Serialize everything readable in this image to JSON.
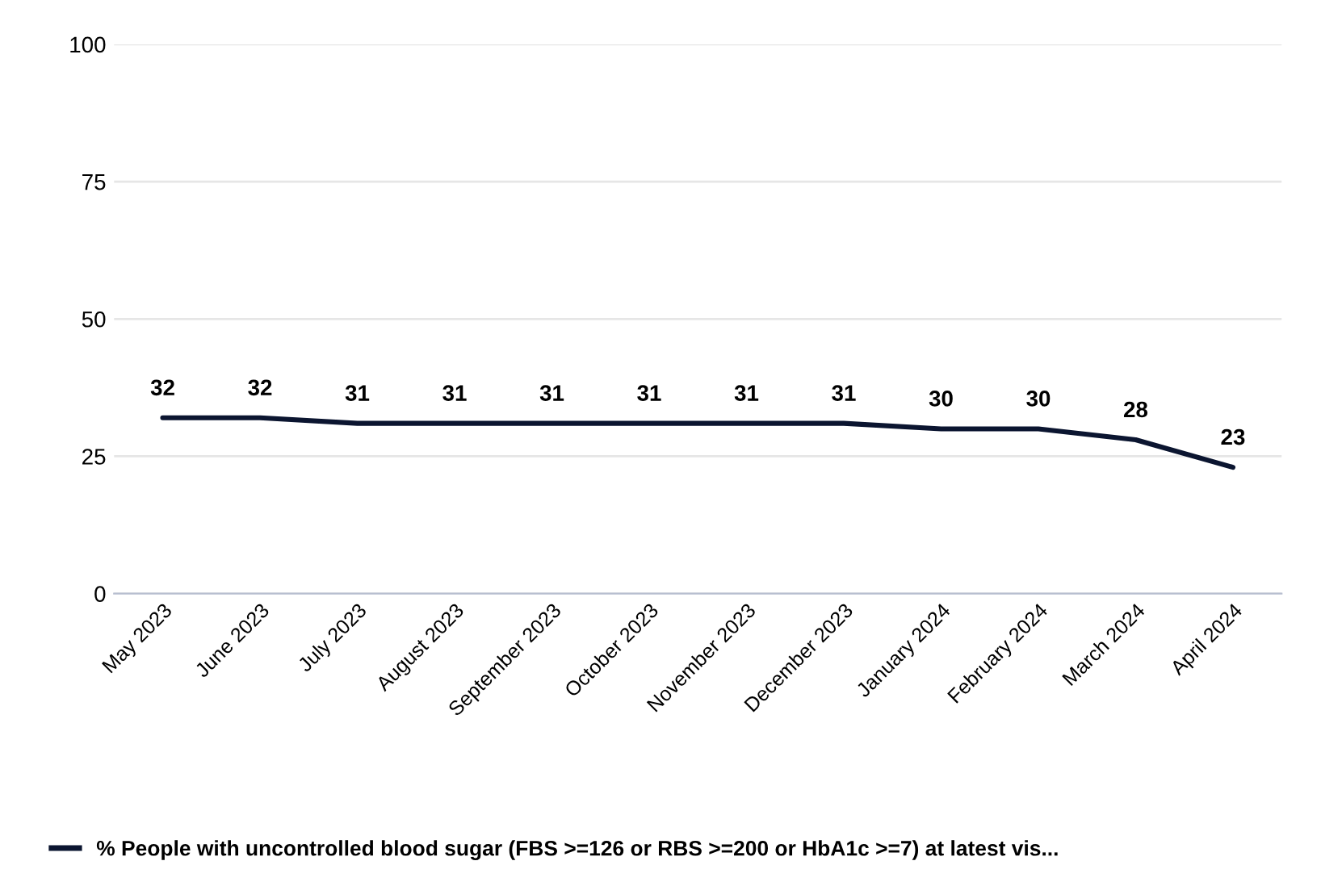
{
  "chart_data": {
    "type": "line",
    "categories": [
      "May 2023",
      "June 2023",
      "July 2023",
      "August 2023",
      "September 2023",
      "October 2023",
      "November 2023",
      "December 2023",
      "January 2024",
      "February 2024",
      "March 2024",
      "April 2024"
    ],
    "series": [
      {
        "name": "% People with uncontrolled blood sugar (FBS >=126 or RBS >=200 or HbA1c >=7) at latest vis...",
        "color": "#0b1530",
        "values": [
          32,
          32,
          31,
          31,
          31,
          31,
          31,
          31,
          30,
          30,
          28,
          23
        ]
      }
    ],
    "ylim": [
      0,
      100
    ],
    "yticks": [
      0,
      25,
      50,
      75,
      100
    ],
    "grid": "y",
    "legend": "bottom",
    "data_labels": true,
    "marker": "none",
    "line_style": "solid"
  }
}
